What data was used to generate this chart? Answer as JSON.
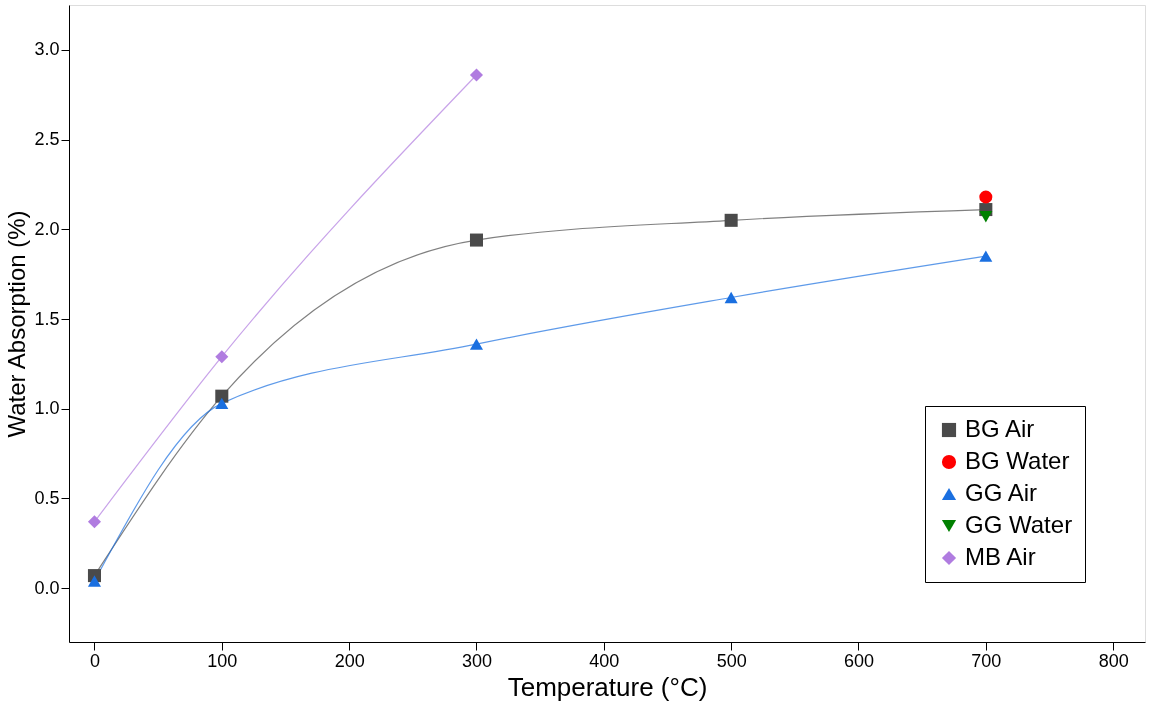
{
  "chart_data": {
    "type": "line",
    "xlabel": "Temperature (°C)",
    "ylabel": "Water Absorption (%)",
    "xlim": [
      -20,
      825
    ],
    "xticks": [
      0,
      100,
      200,
      300,
      400,
      500,
      600,
      700,
      800
    ],
    "ylim": [
      -0.3,
      3.25
    ],
    "yticks": [
      {
        "value": 0,
        "label": "0.0"
      },
      {
        "value": 0.5,
        "label": "0.5"
      },
      {
        "value": 1,
        "label": "1.0"
      },
      {
        "value": 1.5,
        "label": "1.5"
      },
      {
        "value": 2,
        "label": "2.0"
      },
      {
        "value": 2.5,
        "label": "2.5"
      },
      {
        "value": 3,
        "label": "3.0"
      }
    ],
    "grid": false,
    "legend": "bottom right",
    "line_style": "solid",
    "series": [
      {
        "name": "BG Air",
        "marker": "square",
        "color": "#4a4a4a",
        "x": [
          0,
          100,
          300,
          500,
          700
        ],
        "values": [
          0.07,
          1.07,
          1.94,
          2.05,
          2.11
        ]
      },
      {
        "name": "BG Water",
        "type": "scatter",
        "marker": "circle",
        "color": "#ff0000",
        "x": [
          700
        ],
        "values": [
          2.18
        ]
      },
      {
        "name": "GG Air",
        "marker": "triangle",
        "color": "#1a6fe0",
        "x": [
          0,
          100,
          300,
          500,
          700
        ],
        "values": [
          0.04,
          1.03,
          1.36,
          1.62,
          1.85
        ]
      },
      {
        "name": "GG Water",
        "type": "scatter",
        "marker": "triangle-down",
        "color": "#008000",
        "x": [
          700
        ],
        "values": [
          2.07
        ]
      },
      {
        "name": "MB Air",
        "marker": "diamond",
        "color": "#b07ce0",
        "x": [
          0,
          100,
          300
        ],
        "values": [
          0.37,
          1.29,
          2.86
        ]
      }
    ]
  }
}
